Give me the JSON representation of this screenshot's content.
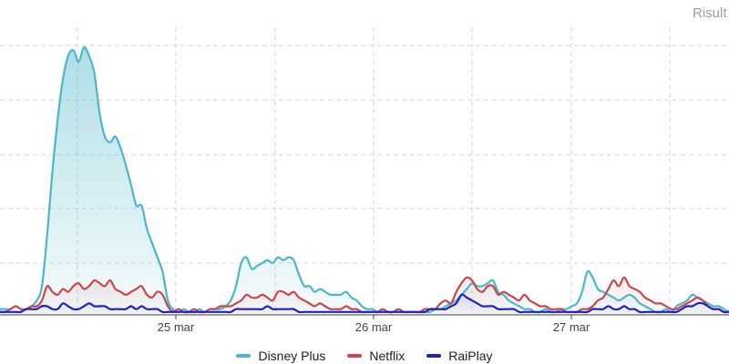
{
  "header": {
    "results_label": "Risult"
  },
  "chart_data": {
    "type": "line",
    "x_tick_labels": [
      "25 mar",
      "26 mar",
      "27 mar"
    ],
    "y_max": 100,
    "grid": true,
    "legend_position": "bottom",
    "series": [
      {
        "name": "Disney Plus",
        "color": "#4db6c9",
        "fill": true,
        "values": [
          2,
          2,
          2,
          3,
          2,
          2,
          3,
          5,
          10,
          28,
          50,
          68,
          82,
          90,
          92,
          88,
          93,
          90,
          84,
          70,
          62,
          60,
          62,
          58,
          52,
          45,
          38,
          38,
          30,
          25,
          20,
          15,
          5,
          2,
          1,
          2,
          1,
          1,
          2,
          1,
          2,
          2,
          2,
          3,
          5,
          10,
          18,
          20,
          16,
          17,
          18,
          19,
          18,
          20,
          19,
          20,
          19,
          14,
          10,
          10,
          8,
          9,
          8,
          7,
          7,
          7,
          8,
          6,
          5,
          3,
          2,
          2,
          1,
          1,
          1,
          1,
          1,
          1,
          1,
          1,
          1,
          1,
          1,
          2,
          2,
          3,
          4,
          5,
          7,
          9,
          11,
          10,
          10,
          11,
          12,
          8,
          7,
          5,
          4,
          3,
          2,
          2,
          1,
          1,
          2,
          1,
          1,
          2,
          2,
          3,
          4,
          8,
          15,
          13,
          9,
          8,
          7,
          6,
          5,
          6,
          7,
          6,
          4,
          3,
          2,
          1,
          1,
          2,
          1,
          3,
          4,
          5,
          7,
          6,
          5,
          4,
          3,
          3,
          2,
          1
        ]
      },
      {
        "name": "Netflix",
        "color": "#c9474c",
        "fill": false,
        "values": [
          1,
          1,
          2,
          3,
          2,
          2,
          3,
          3,
          5,
          10,
          8,
          7,
          9,
          8,
          10,
          11,
          9,
          10,
          12,
          11,
          10,
          12,
          9,
          8,
          7,
          8,
          9,
          10,
          7,
          6,
          8,
          7,
          3,
          1,
          2,
          1,
          1,
          2,
          1,
          1,
          2,
          2,
          3,
          3,
          3,
          4,
          5,
          7,
          6,
          6,
          7,
          6,
          5,
          8,
          8,
          7,
          8,
          6,
          5,
          4,
          3,
          4,
          3,
          2,
          2,
          2,
          3,
          2,
          2,
          1,
          1,
          1,
          1,
          2,
          1,
          1,
          2,
          1,
          1,
          1,
          1,
          2,
          2,
          2,
          4,
          5,
          4,
          8,
          11,
          13,
          12,
          9,
          8,
          10,
          10,
          7,
          8,
          7,
          6,
          5,
          7,
          5,
          4,
          3,
          3,
          2,
          2,
          2,
          1,
          1,
          1,
          2,
          2,
          3,
          5,
          6,
          9,
          12,
          10,
          13,
          10,
          9,
          8,
          6,
          5,
          4,
          4,
          3,
          2,
          2,
          3,
          4,
          5,
          6,
          5,
          3,
          2,
          2,
          1,
          1
        ]
      },
      {
        "name": "RaiPlay",
        "color": "#2222b8",
        "fill": false,
        "values": [
          1,
          1,
          1,
          1,
          1,
          2,
          2,
          2,
          3,
          3,
          2,
          2,
          4,
          3,
          2,
          2,
          3,
          4,
          3,
          3,
          3,
          2,
          2,
          2,
          2,
          3,
          2,
          3,
          2,
          2,
          2,
          1,
          1,
          1,
          1,
          1,
          1,
          1,
          1,
          1,
          1,
          1,
          1,
          1,
          1,
          2,
          2,
          2,
          2,
          2,
          2,
          3,
          2,
          2,
          2,
          2,
          2,
          1,
          1,
          1,
          1,
          1,
          1,
          1,
          1,
          1,
          1,
          1,
          1,
          1,
          1,
          1,
          1,
          1,
          1,
          1,
          1,
          1,
          1,
          1,
          1,
          1,
          2,
          2,
          2,
          2,
          3,
          4,
          7,
          6,
          5,
          4,
          3,
          3,
          3,
          2,
          2,
          2,
          2,
          1,
          1,
          1,
          1,
          1,
          1,
          1,
          1,
          1,
          1,
          1,
          1,
          1,
          1,
          2,
          2,
          2,
          3,
          2,
          2,
          3,
          2,
          2,
          1,
          1,
          1,
          1,
          1,
          1,
          1,
          1,
          2,
          3,
          3,
          4,
          4,
          3,
          2,
          2,
          1,
          1
        ]
      }
    ]
  },
  "legend": {
    "items": [
      "Disney Plus",
      "Netflix",
      "RaiPlay"
    ],
    "colors": [
      "#4db6c9",
      "#c9474c",
      "#2222b8"
    ]
  }
}
